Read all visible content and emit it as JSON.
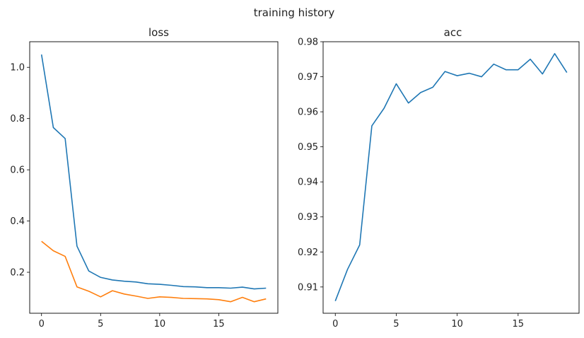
{
  "figure": {
    "title": "training history"
  },
  "chart_data": [
    {
      "type": "line",
      "title": "loss",
      "xlabel": "",
      "ylabel": "",
      "x": [
        0,
        1,
        2,
        3,
        4,
        5,
        6,
        7,
        8,
        9,
        10,
        11,
        12,
        13,
        14,
        15,
        16,
        17,
        18,
        19
      ],
      "xlim": [
        -1,
        20
      ],
      "ylim": [
        0.04,
        1.1
      ],
      "xticks": [
        0,
        5,
        10,
        15
      ],
      "yticks": [
        0.2,
        0.4,
        0.6,
        0.8,
        1.0
      ],
      "yticklabels": [
        "0.2",
        "0.4",
        "0.6",
        "0.8",
        "1.0"
      ],
      "grid": false,
      "series": [
        {
          "color": "#1f77b4",
          "values": [
            1.05,
            0.765,
            0.722,
            0.302,
            0.205,
            0.18,
            0.17,
            0.165,
            0.162,
            0.155,
            0.153,
            0.149,
            0.144,
            0.143,
            0.14,
            0.14,
            0.138,
            0.142,
            0.135,
            0.138
          ]
        },
        {
          "color": "#ff7f0e",
          "values": [
            0.321,
            0.284,
            0.262,
            0.143,
            0.126,
            0.104,
            0.128,
            0.115,
            0.107,
            0.098,
            0.104,
            0.102,
            0.098,
            0.097,
            0.096,
            0.093,
            0.085,
            0.102,
            0.085,
            0.096
          ]
        }
      ]
    },
    {
      "type": "line",
      "title": "acc",
      "xlabel": "",
      "ylabel": "",
      "x": [
        0,
        1,
        2,
        3,
        4,
        5,
        6,
        7,
        8,
        9,
        10,
        11,
        12,
        13,
        14,
        15,
        16,
        17,
        18,
        19
      ],
      "xlim": [
        -1,
        20
      ],
      "ylim": [
        0.9025,
        0.98
      ],
      "xticks": [
        0,
        5,
        10,
        15
      ],
      "yticks": [
        0.91,
        0.92,
        0.93,
        0.94,
        0.95,
        0.96,
        0.97,
        0.98
      ],
      "yticklabels": [
        "0.91",
        "0.92",
        "0.93",
        "0.94",
        "0.95",
        "0.96",
        "0.97",
        "0.98"
      ],
      "grid": false,
      "series": [
        {
          "color": "#1f77b4",
          "values": [
            0.906,
            0.915,
            0.922,
            0.956,
            0.961,
            0.968,
            0.9625,
            0.9655,
            0.967,
            0.9715,
            0.9703,
            0.971,
            0.97,
            0.9736,
            0.972,
            0.972,
            0.975,
            0.9708,
            0.9766,
            0.9712
          ]
        }
      ]
    }
  ]
}
